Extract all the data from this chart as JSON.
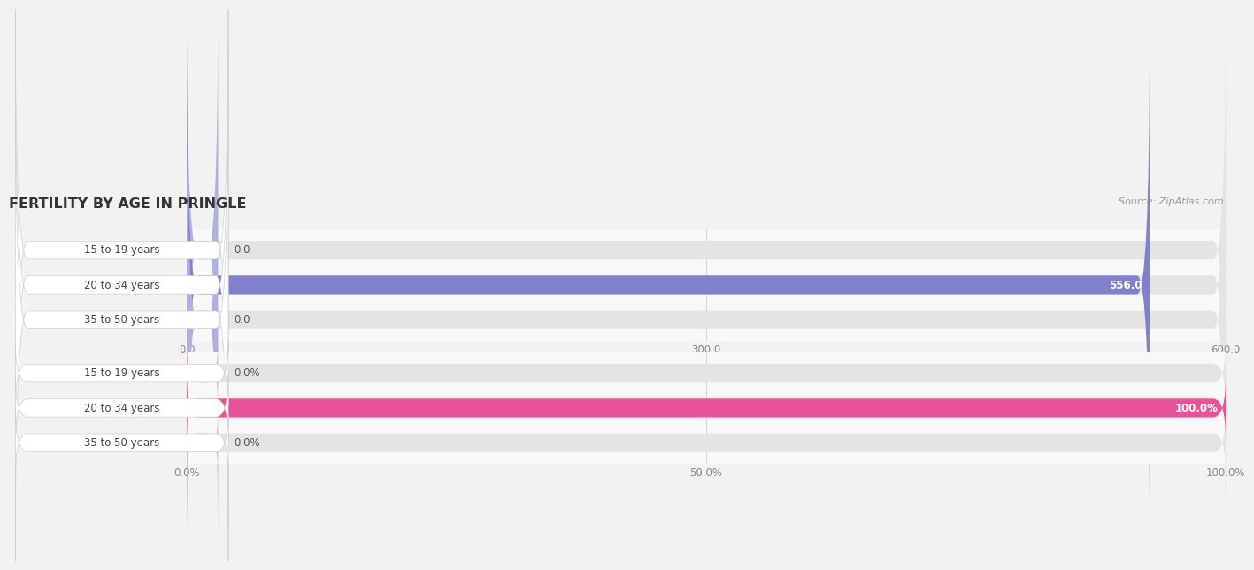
{
  "title": "FERTILITY BY AGE IN PRINGLE",
  "source": "Source: ZipAtlas.com",
  "background_color": "#f2f2f2",
  "top_chart": {
    "categories": [
      "15 to 19 years",
      "20 to 34 years",
      "35 to 50 years"
    ],
    "values": [
      0.0,
      556.0,
      0.0
    ],
    "bar_color_active": "#8080cc",
    "bar_color_inactive": "#b0b0dd",
    "x_ticks": [
      0.0,
      300.0,
      600.0
    ],
    "xlim": [
      0,
      600.0
    ],
    "value_labels": [
      "0.0",
      "556.0",
      "0.0"
    ]
  },
  "bottom_chart": {
    "categories": [
      "15 to 19 years",
      "20 to 34 years",
      "35 to 50 years"
    ],
    "values": [
      0.0,
      100.0,
      0.0
    ],
    "bar_color_active": "#e8529a",
    "bar_color_inactive": "#f0a0c8",
    "x_ticks": [
      0.0,
      50.0,
      100.0
    ],
    "xlim": [
      0,
      100.0
    ],
    "value_labels": [
      "0.0%",
      "100.0%",
      "0.0%"
    ]
  },
  "label_box_color": "#ffffff",
  "label_text_color": "#444444",
  "bar_bg_color": "#e4e4e4",
  "chart_bg_color": "#f8f8f8",
  "grid_color": "#d8d8d8",
  "tick_color": "#888888",
  "title_color": "#333333",
  "source_color": "#999999"
}
